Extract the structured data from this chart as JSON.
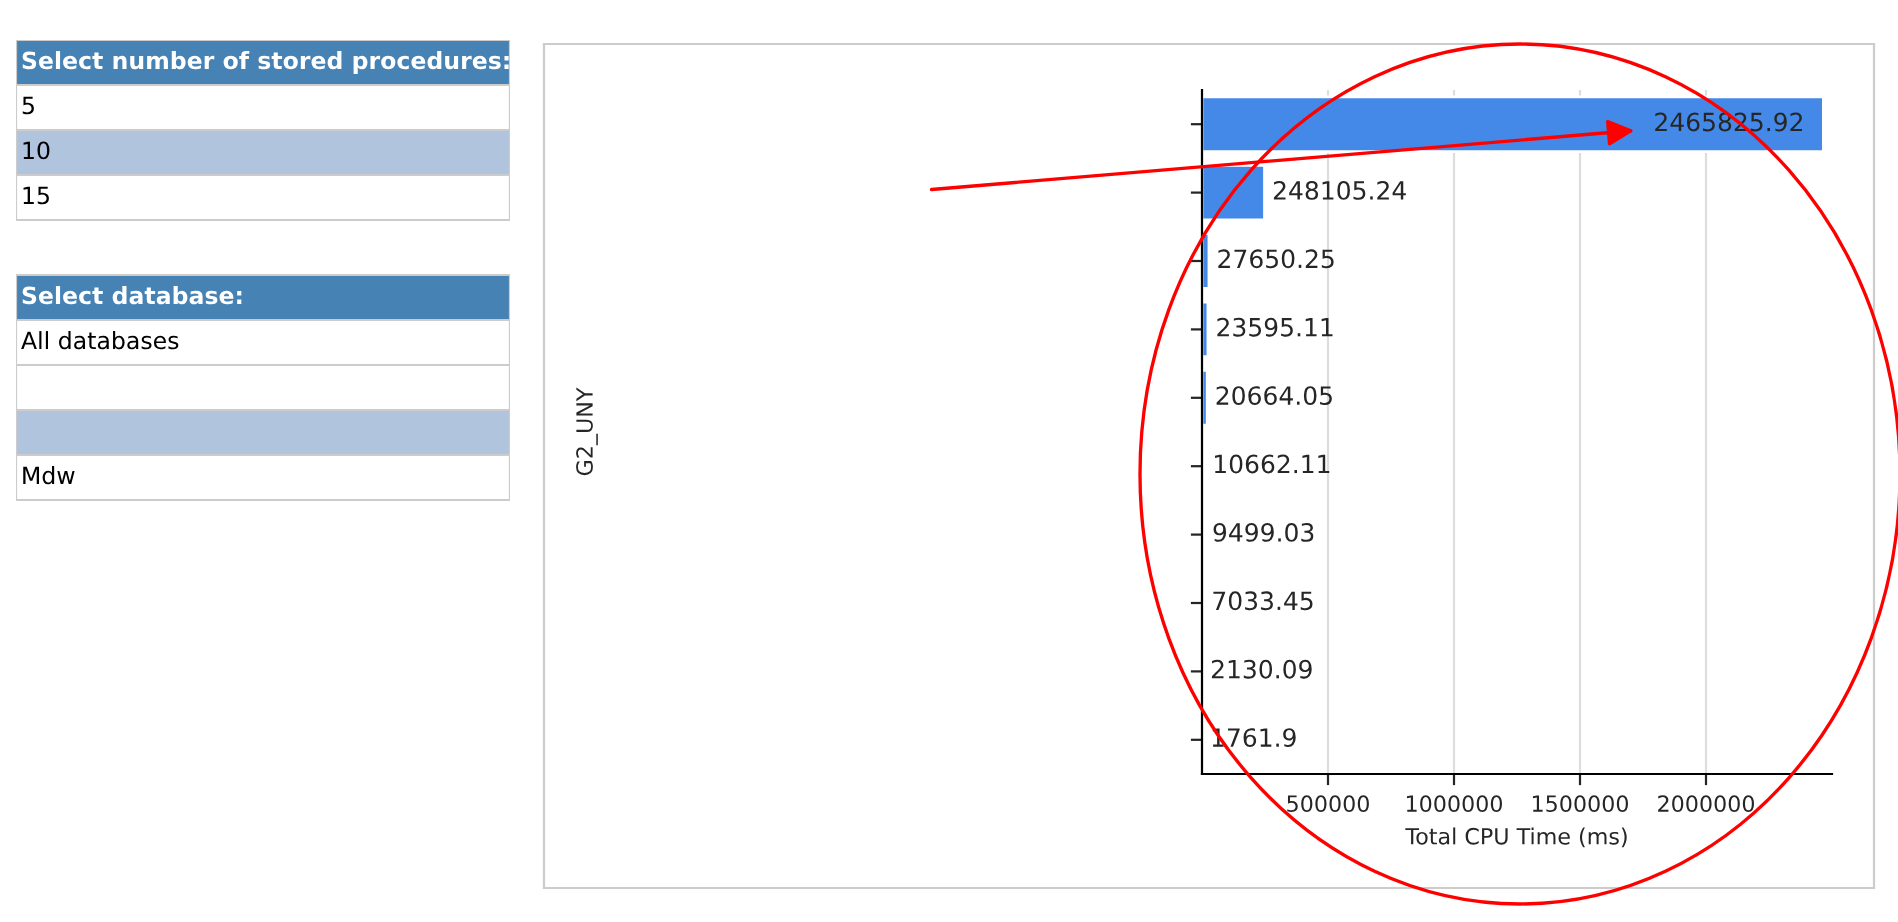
{
  "chart_data": [
    {
      "type": "other",
      "annotations": [
        "Select number of stored procedures:",
        "5",
        "10",
        "15",
        "Select database:",
        "All databases",
        "Mdw"
      ]
    },
    {
      "type": "bar",
      "orientation": "horizontal",
      "categories": [
        null,
        null,
        null,
        null,
        null,
        null,
        null,
        null,
        null,
        null
      ],
      "values": [
        2465825.92,
        248105.24,
        27650.25,
        23595.11,
        20664.05,
        10662.11,
        9499.03,
        7033.45,
        2130.09,
        1761.9
      ],
      "color": "#4589e8",
      "data_labels": true,
      "xlabel": "Total CPU Time (ms)",
      "ylabel": "G2_UNY",
      "xlim": [
        0,
        2500000
      ],
      "xticks": [
        500000,
        1000000,
        1500000,
        2000000
      ],
      "grid": "x",
      "legend": false
    }
  ]
}
